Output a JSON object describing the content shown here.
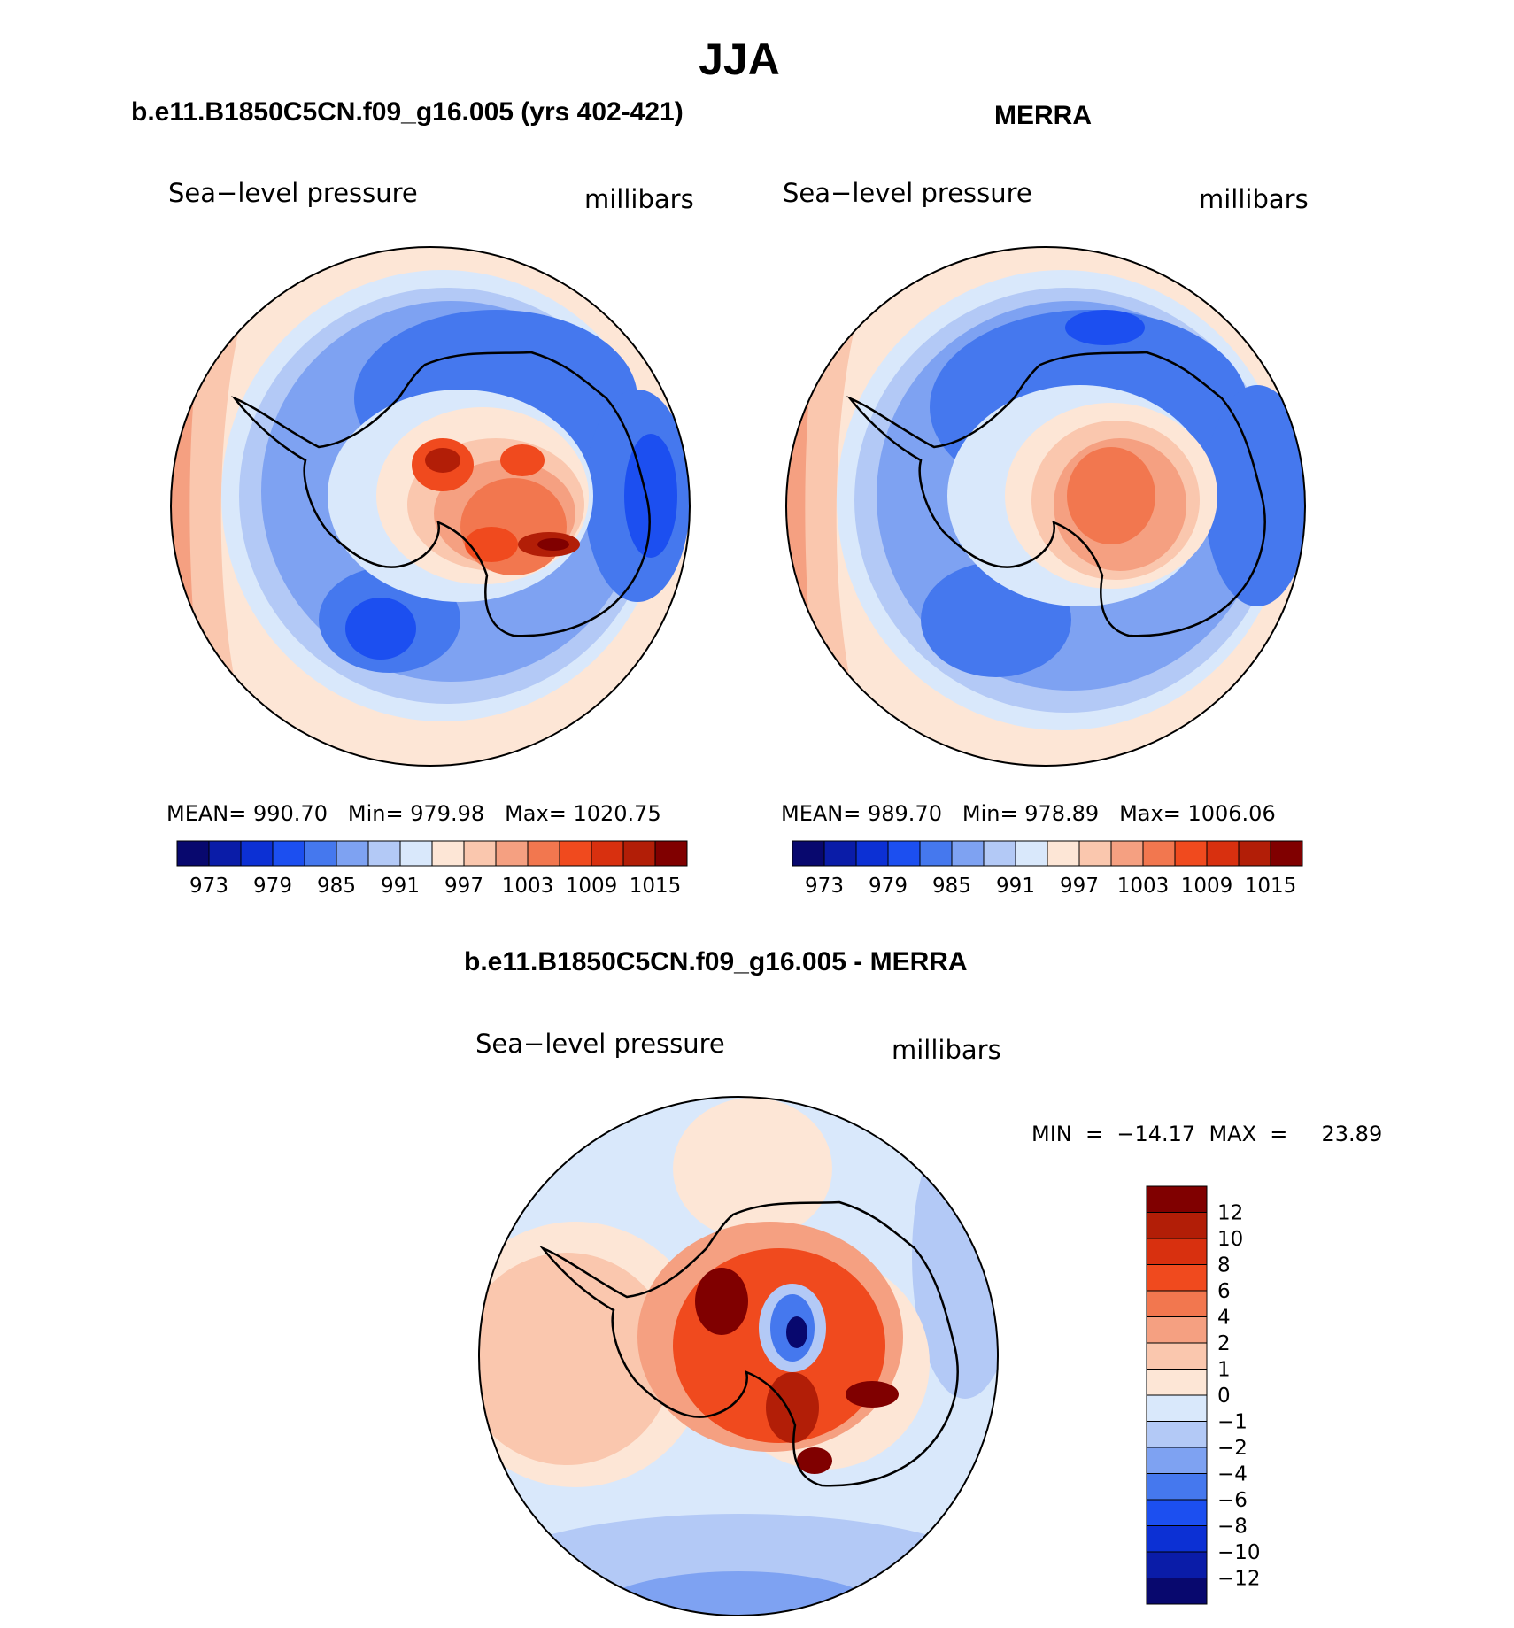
{
  "figure": {
    "title": "JJA"
  },
  "panels": [
    {
      "id": "model",
      "title": "b.e11.B1850C5CN.f09_g16.005 (yrs 402-421)",
      "left_label": "Sea−level pressure",
      "right_label": "millibars",
      "stats": {
        "mean_label": "MEAN=",
        "mean": "990.70",
        "min_label": "Min=",
        "min": "979.98",
        "max_label": "Max=",
        "max": "1020.75"
      }
    },
    {
      "id": "obs",
      "title": "MERRA",
      "left_label": "Sea−level pressure",
      "right_label": "millibars",
      "stats": {
        "mean_label": "MEAN=",
        "mean": "989.70",
        "min_label": "Min=",
        "min": "978.89",
        "max_label": "Max=",
        "max": "1006.06"
      }
    },
    {
      "id": "diff",
      "title": "b.e11.B1850C5CN.f09_g16.005 - MERRA",
      "left_label": "Sea−level pressure",
      "right_label": "millibars",
      "minmax": "MIN  =  −14.17  MAX  =     23.89"
    }
  ],
  "colorbar_abs": {
    "colors": [
      "#08086e",
      "#0a1ca8",
      "#0c30d4",
      "#1c4ff0",
      "#4578ee",
      "#7ea2f2",
      "#b3c9f6",
      "#d9e8fb",
      "#fde6d6",
      "#fac7ae",
      "#f5a081",
      "#f2774f",
      "#f04a1e",
      "#d8300f",
      "#b21e07",
      "#800000"
    ],
    "tick_labels": [
      "973",
      "979",
      "985",
      "991",
      "997",
      "1003",
      "1009",
      "1015"
    ]
  },
  "colorbar_diff": {
    "colors": [
      "#08086e",
      "#0a1ca8",
      "#0c30d4",
      "#1c4ff0",
      "#4578ee",
      "#7ea2f2",
      "#b3c9f6",
      "#d9e8fb",
      "#fde6d6",
      "#fac7ae",
      "#f5a081",
      "#f2774f",
      "#f04a1e",
      "#d8300f",
      "#b21e07",
      "#800000"
    ],
    "tick_labels": [
      "12",
      "10",
      "8",
      "6",
      "4",
      "2",
      "1",
      "0",
      "−1",
      "−2",
      "−4",
      "−6",
      "−8",
      "−10",
      "−12"
    ]
  }
}
